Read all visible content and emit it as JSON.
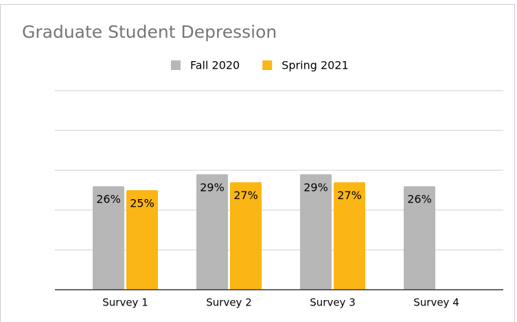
{
  "chart_data": {
    "type": "bar",
    "title": "Graduate Student Depression",
    "categories": [
      "Survey 1",
      "Survey 2",
      "Survey 3",
      "Survey 4"
    ],
    "series": [
      {
        "name": "Fall 2020",
        "color": "#b7b7b7",
        "values": [
          26,
          29,
          29,
          26
        ],
        "value_labels": [
          "26%",
          "29%",
          "29%",
          "26%"
        ]
      },
      {
        "name": "Spring 2021",
        "color": "#fbb615",
        "values": [
          25,
          27,
          27,
          null
        ],
        "value_labels": [
          "25%",
          "27%",
          "27%",
          null
        ]
      }
    ],
    "ylim": [
      0,
      50
    ],
    "yticks": [
      0,
      10,
      20,
      30,
      40,
      50
    ],
    "grid": true,
    "legend": "top"
  }
}
